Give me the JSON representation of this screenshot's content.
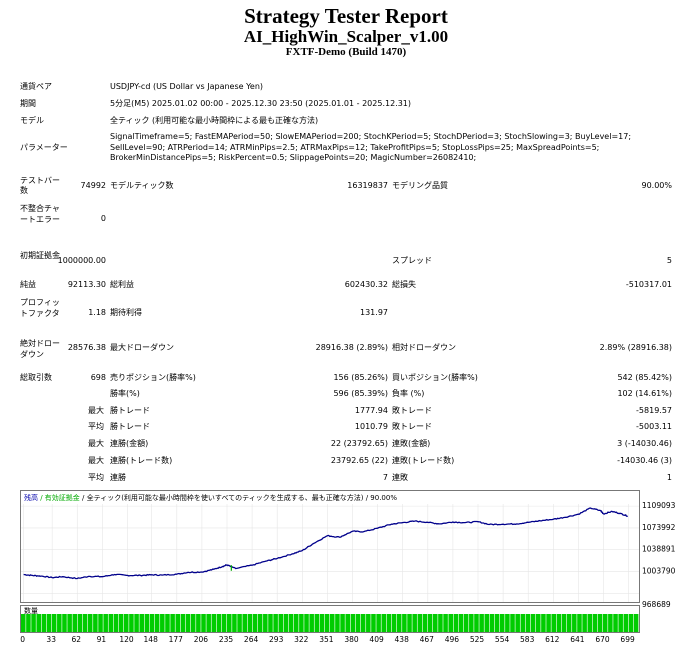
{
  "report": {
    "title": "Strategy Tester Report",
    "subtitle": "AI_HighWin_Scalper_v1.00",
    "server": "FXTF-Demo (Build 1470)"
  },
  "settings": {
    "symbol_label": "通貨ペア",
    "symbol": "USDJPY-cd (US Dollar vs Japanese Yen)",
    "period_label": "期間",
    "period": "5分足(M5) 2025.01.02 00:00 - 2025.12.30 23:50 (2025.01.01 - 2025.12.31)",
    "model_label": "モデル",
    "model": "全ティック (利用可能な最小時間枠による最も正確な方法)",
    "params_label": "パラメーター",
    "params": "SignalTimeframe=5; FastEMAPeriod=50; SlowEMAPeriod=200; StochKPeriod=5; StochDPeriod=3; StochSlowing=3; BuyLevel=17; SellLevel=90; ATRPeriod=14; ATRMinPips=2.5; ATRMaxPips=12; TakeProfitPips=5; StopLossPips=25; MaxSpreadPoints=5; BrokerMinDistancePips=5; RiskPercent=0.5; SlippagePoints=20; MagicNumber=26082410;"
  },
  "stats": {
    "bars_label": "テストバー数",
    "bars": "74992",
    "ticks_label": "モデルティック数",
    "ticks": "16319837",
    "quality_label": "モデリング品質",
    "quality": "90.00%",
    "errors_label": "不整合チャートエラー",
    "errors": "0",
    "deposit_label": "初期証拠金",
    "deposit": "1000000.00",
    "spread_label": "スプレッド",
    "spread": "5",
    "net_label": "純益",
    "net": "92113.30",
    "gross_profit_label": "総利益",
    "gross_profit": "602430.32",
    "gross_loss_label": "総損失",
    "gross_loss": "-510317.01",
    "pf_label": "プロフィットファクタ",
    "pf": "1.18",
    "payoff_label": "期待利得",
    "payoff": "131.97",
    "abs_dd_label": "絶対ドローダウン",
    "abs_dd": "28576.38",
    "max_dd_label": "最大ドローダウン",
    "max_dd": "28916.38 (2.89%)",
    "rel_dd_label": "相対ドローダウン",
    "rel_dd": "2.89% (28916.38)",
    "trades_label": "総取引数",
    "trades": "698",
    "short_label": "売りポジション(勝率%)",
    "short": "156 (85.26%)",
    "long_label": "買いポジション(勝率%)",
    "long": "542 (85.42%)",
    "win_label": "勝率(%)",
    "win": "596 (85.39%)",
    "loss_label": "負率 (%)",
    "loss": "102 (14.61%)",
    "max_word": "最大",
    "avg_word": "平均",
    "lpt_label": "勝トレード",
    "lpt": "1777.94",
    "llt_label": "敗トレード",
    "llt": "-5819.57",
    "apt_label": "勝トレード",
    "apt": "1010.79",
    "alt_label": "敗トレード",
    "alt": "-5003.11",
    "mcw_label": "連勝(金額)",
    "mcw": "22 (23792.65)",
    "mcl_label": "連敗(金額)",
    "mcl": "3 (-14030.46)",
    "mcp_label": "連勝(トレード数)",
    "mcp": "23792.65 (22)",
    "mclt_label": "連敗(トレード数)",
    "mclt": "-14030.46 (3)",
    "acw_label": "連勝",
    "acw": "7",
    "acl_label": "連敗",
    "acl": "1"
  },
  "chart_data": {
    "type": "line",
    "legend": [
      {
        "text": "残高",
        "color": "#0000aa"
      },
      {
        "text": " / 有効証拠金",
        "color": "#00aa00"
      },
      {
        "text": " / 全ティック(利用可能な最小時間枠を使いすべてのティックを生成する、最も正確な方法) / 90.00%",
        "color": "#000000"
      }
    ],
    "series": [
      {
        "name": "残高",
        "color": "#00008b",
        "x": [
          0,
          10,
          20,
          33,
          45,
          62,
          75,
          91,
          105,
          120,
          135,
          148,
          160,
          177,
          190,
          206,
          220,
          230,
          235,
          245,
          264,
          280,
          293,
          310,
          322,
          335,
          351,
          365,
          380,
          393,
          409,
          425,
          438,
          452,
          467,
          480,
          496,
          510,
          525,
          538,
          554,
          570,
          583,
          597,
          612,
          625,
          641,
          655,
          667,
          670,
          680,
          690,
          698
        ],
        "y": [
          999000,
          997500,
          996500,
          994000,
          995500,
          992500,
          996000,
          995500,
          999000,
          997500,
          997500,
          998500,
          998000,
          999500,
          1002500,
          1003000,
          1007500,
          1012000,
          1014500,
          1008500,
          1014000,
          1020500,
          1025000,
          1032000,
          1037500,
          1049000,
          1061500,
          1059000,
          1068500,
          1068000,
          1073500,
          1080000,
          1082500,
          1085000,
          1083000,
          1080500,
          1083500,
          1082500,
          1084000,
          1079500,
          1080000,
          1080500,
          1083000,
          1085500,
          1088000,
          1091000,
          1096000,
          1106000,
          1101500,
          1096500,
          1100500,
          1097000,
          1093000
        ]
      }
    ],
    "equity_spikes": [
      {
        "x": 240,
        "y": 1005000
      }
    ],
    "ylim": [
      966000,
      1112500
    ],
    "xlim": [
      -3,
      711
    ],
    "y_ticks": [
      1109093,
      1073992,
      1038891,
      1003790,
      968689
    ],
    "x_ticks": [
      0,
      33,
      62,
      91,
      120,
      148,
      177,
      206,
      235,
      264,
      293,
      322,
      351,
      380,
      409,
      438,
      467,
      496,
      525,
      554,
      583,
      612,
      641,
      670,
      699
    ],
    "volume_label": "数量",
    "volume_count": 699,
    "volume_ticks_value_color": "#00cc00"
  }
}
